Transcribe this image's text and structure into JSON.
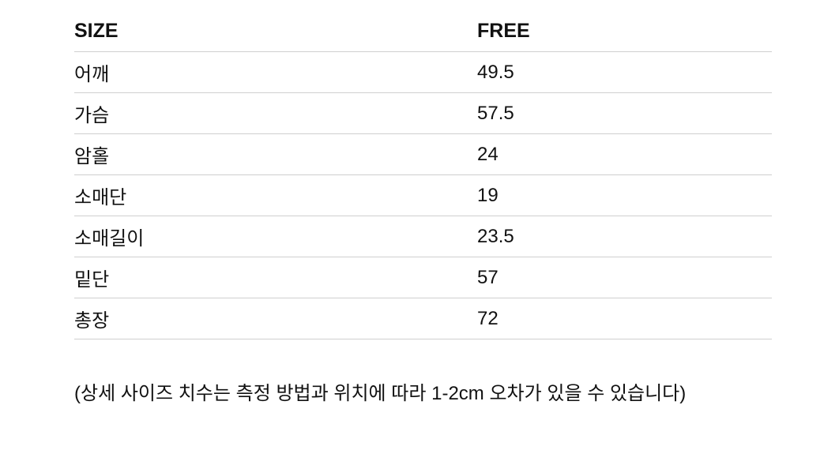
{
  "table": {
    "header": {
      "label": "SIZE",
      "value": "FREE"
    },
    "rows": [
      {
        "label": "어깨",
        "value": "49.5"
      },
      {
        "label": "가슴",
        "value": "57.5"
      },
      {
        "label": "암홀",
        "value": "24"
      },
      {
        "label": "소매단",
        "value": "19"
      },
      {
        "label": "소매길이",
        "value": "23.5"
      },
      {
        "label": "밑단",
        "value": "57"
      },
      {
        "label": "총장",
        "value": "72"
      }
    ]
  },
  "note": "(상세 사이즈 치수는 측정 방법과 위치에 따라 1-2cm 오차가 있을 수 있습니다)"
}
